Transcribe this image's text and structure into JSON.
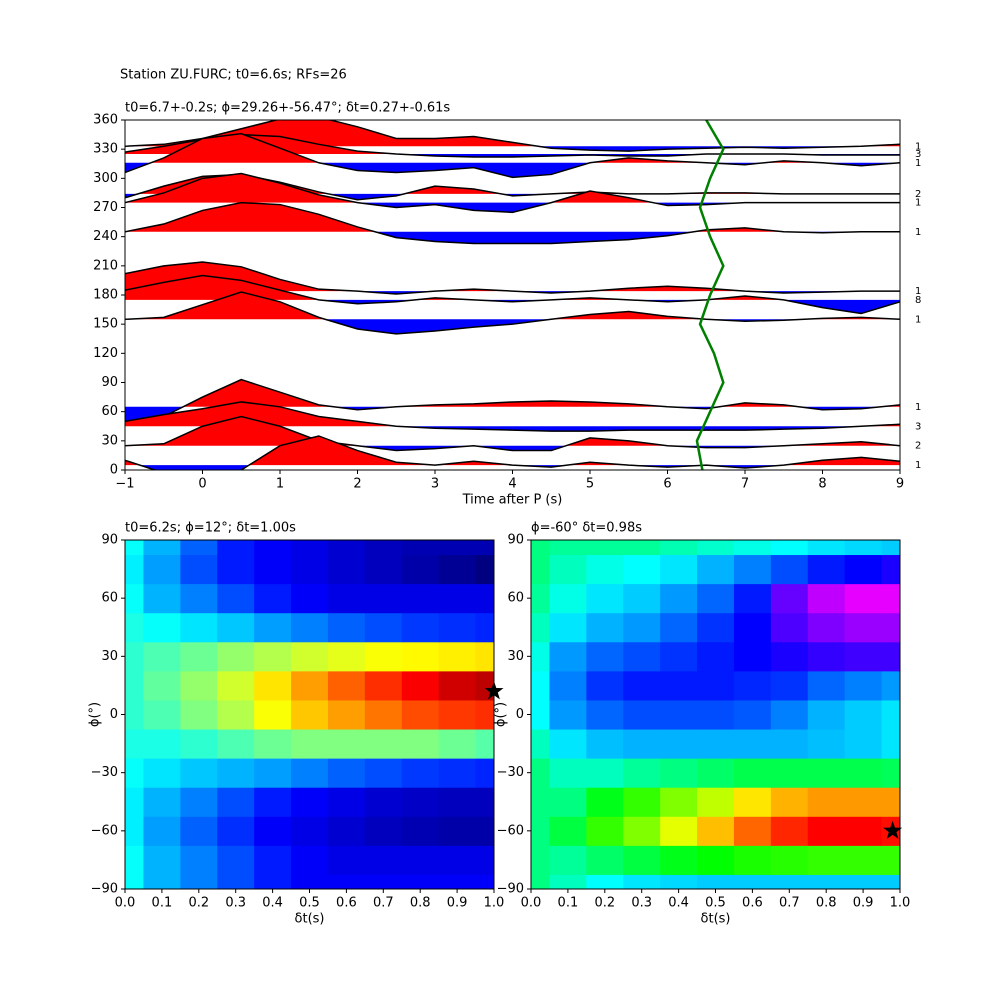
{
  "title": "Station ZU.FURC; t0=6.6s; RFs=26",
  "chart_data": [
    {
      "type": "wiggle",
      "title": "t0=6.7+-0.2s; ϕ=29.26+-56.47°; δt=0.27+-0.61s",
      "xlabel": "Time after P (s)",
      "xlim": [
        -1,
        9
      ],
      "xticks": [
        {
          "value": -1,
          "label": "−1"
        },
        0,
        1,
        2,
        3,
        4,
        5,
        6,
        7,
        8,
        9
      ],
      "ylim": [
        0,
        360
      ],
      "yticks": [
        0,
        30,
        60,
        90,
        120,
        150,
        180,
        210,
        240,
        270,
        300,
        330,
        360
      ],
      "x": [
        -1,
        -0.5,
        0,
        0.5,
        1,
        1.5,
        2,
        2.5,
        3,
        3.5,
        4,
        4.5,
        5,
        5.5,
        6,
        6.5,
        7,
        7.5,
        8,
        8.5,
        9
      ],
      "positive_color": "#ff0000",
      "negative_color": "#0000ff",
      "line_color": "#000000",
      "series": [
        {
          "baseline": 333,
          "count": 1,
          "values": [
            0,
            2,
            8,
            18,
            28,
            30,
            20,
            8,
            8,
            10,
            4,
            -2,
            -4,
            -5,
            -3,
            -2,
            -1,
            -2,
            -1,
            0,
            2
          ]
        },
        {
          "baseline": 325,
          "count": 3,
          "values": [
            2,
            8,
            15,
            20,
            18,
            10,
            3,
            0,
            -2,
            -3,
            -3,
            -2,
            -1,
            -2,
            -2,
            0,
            0,
            0,
            -1,
            -1,
            -1
          ]
        },
        {
          "baseline": 316,
          "count": 1,
          "values": [
            -10,
            5,
            25,
            30,
            15,
            0,
            -8,
            -10,
            -8,
            -5,
            -15,
            -12,
            0,
            5,
            2,
            0,
            -2,
            2,
            0,
            -3,
            0
          ]
        },
        {
          "baseline": 284,
          "count": 2,
          "values": [
            -4,
            8,
            18,
            20,
            12,
            2,
            -6,
            -2,
            8,
            5,
            -2,
            0,
            2,
            0,
            0,
            1,
            1,
            0,
            0,
            0,
            0
          ]
        },
        {
          "baseline": 275,
          "count": 1,
          "values": [
            0,
            10,
            25,
            30,
            20,
            8,
            0,
            -5,
            -2,
            -8,
            -10,
            0,
            12,
            5,
            -3,
            -2,
            0,
            0,
            0,
            0,
            0
          ]
        },
        {
          "baseline": 245,
          "count": 1,
          "values": [
            0,
            8,
            22,
            30,
            28,
            18,
            5,
            -6,
            -10,
            -12,
            -12,
            -12,
            -10,
            -8,
            -4,
            2,
            4,
            0,
            -1,
            0,
            0
          ]
        },
        {
          "baseline": 184,
          "count": 1,
          "values": [
            18,
            26,
            30,
            25,
            12,
            2,
            0,
            -3,
            0,
            2,
            0,
            -2,
            0,
            3,
            5,
            3,
            0,
            -2,
            -1,
            0,
            0
          ]
        },
        {
          "baseline": 175,
          "count": 8,
          "values": [
            10,
            18,
            25,
            20,
            10,
            0,
            -4,
            -2,
            2,
            0,
            -2,
            0,
            2,
            0,
            -2,
            0,
            4,
            0,
            -8,
            -14,
            -2
          ]
        },
        {
          "baseline": 155,
          "count": 1,
          "values": [
            0,
            2,
            15,
            28,
            18,
            2,
            -10,
            -15,
            -12,
            -8,
            -5,
            0,
            5,
            8,
            3,
            0,
            -2,
            -1,
            1,
            2,
            0
          ]
        },
        {
          "baseline": 65,
          "count": 1,
          "values": [
            -15,
            -10,
            10,
            28,
            15,
            2,
            -3,
            0,
            2,
            3,
            5,
            6,
            5,
            3,
            0,
            -2,
            4,
            2,
            -3,
            -2,
            2
          ]
        },
        {
          "baseline": 45,
          "count": 3,
          "values": [
            5,
            12,
            18,
            25,
            20,
            10,
            5,
            0,
            -2,
            -3,
            -4,
            -5,
            -5,
            -4,
            -4,
            -4,
            -4,
            -3,
            -2,
            0,
            2
          ]
        },
        {
          "baseline": 25,
          "count": 2,
          "values": [
            0,
            2,
            20,
            30,
            20,
            5,
            0,
            -5,
            -3,
            0,
            -5,
            -5,
            8,
            5,
            0,
            -2,
            -2,
            0,
            2,
            4,
            0
          ]
        },
        {
          "baseline": 5,
          "count": 1,
          "values": [
            5,
            -8,
            -10,
            -5,
            20,
            30,
            15,
            3,
            0,
            4,
            0,
            -2,
            3,
            0,
            -2,
            0,
            -3,
            0,
            5,
            8,
            4
          ]
        }
      ],
      "curve": {
        "color": "#008000",
        "x": [
          6.45,
          6.38,
          6.55,
          6.72,
          6.6,
          6.42,
          6.55,
          6.72,
          6.55,
          6.42,
          6.55,
          6.72,
          6.5
        ],
        "y": [
          0,
          30,
          60,
          90,
          120,
          150,
          180,
          210,
          240,
          270,
          300,
          330,
          360
        ]
      }
    },
    {
      "type": "heatmap",
      "title": "t0=6.2s; ϕ=12°; δt=1.00s",
      "xlabel": "δt(s)",
      "ylabel": "ϕ(°)",
      "xlim": [
        0,
        1
      ],
      "ylim": [
        -90,
        90
      ],
      "xticks": [
        {
          "value": 0,
          "label": "0.0"
        },
        0.1,
        0.2,
        0.3,
        0.4,
        0.5,
        0.6,
        0.7,
        0.8,
        0.9,
        {
          "value": 1,
          "label": "1.0"
        }
      ],
      "yticks": [
        {
          "value": -90,
          "label": "−90"
        },
        {
          "value": -60,
          "label": "−60"
        },
        {
          "value": -30,
          "label": "−30"
        },
        0,
        30,
        60,
        90
      ],
      "colormap": "jet",
      "x": [
        0,
        0.1,
        0.2,
        0.3,
        0.4,
        0.5,
        0.6,
        0.7,
        0.8,
        0.9,
        1
      ],
      "y": [
        -90,
        -75,
        -60,
        -45,
        -30,
        -15,
        0,
        15,
        30,
        45,
        60,
        75,
        90
      ],
      "z": [
        [
          0.38,
          0.3,
          0.25,
          0.2,
          0.15,
          0.12,
          0.12,
          0.12,
          0.12,
          0.12,
          0.12
        ],
        [
          0.38,
          0.3,
          0.25,
          0.2,
          0.15,
          0.12,
          0.1,
          0.1,
          0.1,
          0.1,
          0.1
        ],
        [
          0.36,
          0.28,
          0.22,
          0.17,
          0.12,
          0.1,
          0.08,
          0.06,
          0.05,
          0.04,
          0.04
        ],
        [
          0.36,
          0.3,
          0.25,
          0.2,
          0.15,
          0.12,
          0.1,
          0.08,
          0.07,
          0.06,
          0.06
        ],
        [
          0.38,
          0.35,
          0.32,
          0.3,
          0.28,
          0.25,
          0.22,
          0.2,
          0.18,
          0.17,
          0.16
        ],
        [
          0.4,
          0.4,
          0.42,
          0.45,
          0.48,
          0.5,
          0.5,
          0.5,
          0.5,
          0.48,
          0.46
        ],
        [
          0.42,
          0.45,
          0.5,
          0.55,
          0.62,
          0.68,
          0.72,
          0.76,
          0.8,
          0.82,
          0.83
        ],
        [
          0.42,
          0.47,
          0.52,
          0.58,
          0.65,
          0.72,
          0.78,
          0.83,
          0.88,
          0.92,
          0.94
        ],
        [
          0.42,
          0.45,
          0.48,
          0.52,
          0.55,
          0.58,
          0.6,
          0.62,
          0.63,
          0.64,
          0.65
        ],
        [
          0.4,
          0.38,
          0.35,
          0.32,
          0.28,
          0.25,
          0.22,
          0.2,
          0.18,
          0.17,
          0.16
        ],
        [
          0.38,
          0.3,
          0.25,
          0.2,
          0.15,
          0.12,
          0.1,
          0.1,
          0.1,
          0.1,
          0.1
        ],
        [
          0.36,
          0.28,
          0.2,
          0.15,
          0.12,
          0.1,
          0.08,
          0.06,
          0.04,
          0.02,
          0
        ],
        [
          0.38,
          0.3,
          0.22,
          0.15,
          0.12,
          0.1,
          0.08,
          0.06,
          0.05,
          0.05,
          0.05
        ]
      ],
      "marker": {
        "x": 1.0,
        "y": 12,
        "color": "#000000"
      }
    },
    {
      "type": "heatmap",
      "title": "ϕ=-60° δt=0.98s",
      "xlabel": "δt(s)",
      "ylabel": "ϕ(°)",
      "xlim": [
        0,
        1
      ],
      "ylim": [
        -90,
        90
      ],
      "xticks": [
        {
          "value": 0,
          "label": "0.0"
        },
        0.1,
        0.2,
        0.3,
        0.4,
        0.5,
        0.6,
        0.7,
        0.8,
        0.9,
        {
          "value": 1,
          "label": "1.0"
        }
      ],
      "yticks": [
        {
          "value": -90,
          "label": "−90"
        },
        {
          "value": -60,
          "label": "−60"
        },
        {
          "value": -30,
          "label": "−30"
        },
        0,
        30,
        60,
        90
      ],
      "colormap": "gist_rainbow",
      "x": [
        0,
        0.1,
        0.2,
        0.3,
        0.4,
        0.5,
        0.6,
        0.7,
        0.8,
        0.9,
        1
      ],
      "y": [
        -90,
        -75,
        -60,
        -45,
        -30,
        -15,
        0,
        15,
        30,
        45,
        60,
        75,
        90
      ],
      "z": [
        [
          0.5,
          0.55,
          0.6,
          0.62,
          0.63,
          0.64,
          0.64,
          0.64,
          0.64,
          0.64,
          0.64
        ],
        [
          0.5,
          0.52,
          0.48,
          0.45,
          0.42,
          0.4,
          0.38,
          0.37,
          0.36,
          0.36,
          0.36
        ],
        [
          0.5,
          0.45,
          0.36,
          0.3,
          0.22,
          0.15,
          0.08,
          0.03,
          0,
          0,
          0.01
        ],
        [
          0.5,
          0.5,
          0.42,
          0.36,
          0.3,
          0.25,
          0.18,
          0.14,
          0.12,
          0.12,
          0.12
        ],
        [
          0.5,
          0.55,
          0.55,
          0.52,
          0.5,
          0.48,
          0.46,
          0.46,
          0.46,
          0.46,
          0.47
        ],
        [
          0.55,
          0.62,
          0.65,
          0.66,
          0.66,
          0.66,
          0.66,
          0.66,
          0.65,
          0.64,
          0.62
        ],
        [
          0.6,
          0.68,
          0.72,
          0.74,
          0.74,
          0.74,
          0.73,
          0.7,
          0.66,
          0.64,
          0.62
        ],
        [
          0.6,
          0.7,
          0.76,
          0.78,
          0.78,
          0.78,
          0.77,
          0.76,
          0.72,
          0.7,
          0.68
        ],
        [
          0.58,
          0.68,
          0.72,
          0.74,
          0.76,
          0.78,
          0.8,
          0.82,
          0.84,
          0.85,
          0.85
        ],
        [
          0.55,
          0.62,
          0.66,
          0.68,
          0.72,
          0.76,
          0.8,
          0.86,
          0.9,
          0.92,
          0.92
        ],
        [
          0.52,
          0.58,
          0.62,
          0.64,
          0.68,
          0.72,
          0.78,
          0.88,
          0.95,
          0.98,
          0.98
        ],
        [
          0.5,
          0.55,
          0.58,
          0.6,
          0.62,
          0.66,
          0.7,
          0.74,
          0.78,
          0.8,
          0.82
        ],
        [
          0.5,
          0.52,
          0.52,
          0.52,
          0.54,
          0.56,
          0.58,
          0.6,
          0.62,
          0.63,
          0.64
        ]
      ],
      "marker": {
        "x": 0.98,
        "y": -60,
        "color": "#000000"
      }
    }
  ]
}
